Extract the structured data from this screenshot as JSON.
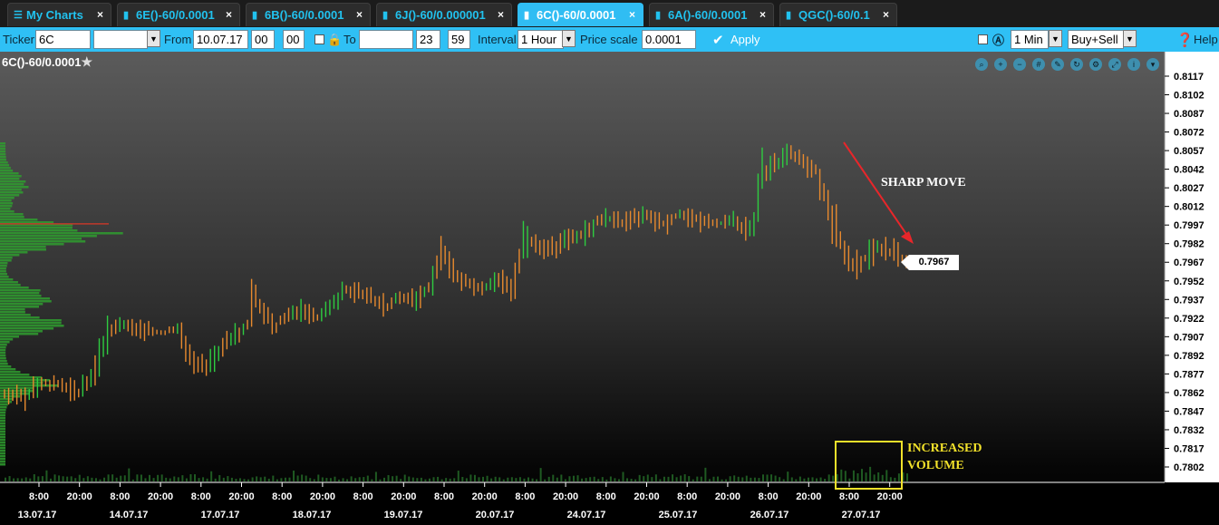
{
  "tabs": [
    {
      "label": "My Charts",
      "icon": "list-icon",
      "active": false
    },
    {
      "label": "6E()-60/0.0001",
      "icon": "chart-icon",
      "active": false
    },
    {
      "label": "6B()-60/0.0001",
      "icon": "chart-icon",
      "active": false
    },
    {
      "label": "6J()-60/0.000001",
      "icon": "chart-icon",
      "active": false
    },
    {
      "label": "6C()-60/0.0001",
      "icon": "chart-icon",
      "active": true
    },
    {
      "label": "6A()-60/0.0001",
      "icon": "chart-icon",
      "active": false
    },
    {
      "label": "QGC()-60/0.1",
      "icon": "chart-icon",
      "active": false
    }
  ],
  "toolbar": {
    "ticker_label": "Ticker",
    "ticker_value": "6C",
    "from_label": "From",
    "from_date": "10.07.17",
    "from_hour": "00",
    "from_minute": "00",
    "to_label": "To",
    "to_hour": "23",
    "to_minute": "59",
    "interval_label": "Interval",
    "interval_value": "1 Hour",
    "price_scale_label": "Price scale",
    "price_scale_value": "0.0001",
    "apply_label": "Apply",
    "timeframe_value": "1 Min",
    "side_value": "Buy+Sell",
    "help_label": "Help"
  },
  "chart_title": "6C()-60/0.0001",
  "last_price": "0.7967",
  "annotations": {
    "sharp_move": "SHARP MOVE",
    "increased_volume_1": "INCREASED",
    "increased_volume_2": "VOLUME"
  },
  "colors": {
    "tab_active": "#30bdf3",
    "toolbar": "#2fc0f5",
    "up_bar": "#2ecc40",
    "down_bar": "#e88a2e",
    "annotation_arrow": "#e8262a",
    "volume_box": "#f2e12a"
  },
  "chart_data": {
    "type": "bar",
    "y_ticks": [
      "0.8117",
      "0.8102",
      "0.8087",
      "0.8072",
      "0.8057",
      "0.8042",
      "0.8027",
      "0.8012",
      "0.7997",
      "0.7982",
      "0.7967",
      "0.7952",
      "0.7937",
      "0.7922",
      "0.7907",
      "0.7892",
      "0.7877",
      "0.7862",
      "0.7847",
      "0.7832",
      "0.7817",
      "0.7802"
    ],
    "ylim": [
      0.7795,
      0.8125
    ],
    "x_time_ticks": [
      "8:00",
      "20:00",
      "8:00",
      "20:00",
      "8:00",
      "20:00",
      "8:00",
      "20:00",
      "8:00",
      "20:00",
      "8:00",
      "20:00",
      "8:00",
      "20:00",
      "8:00",
      "20:00",
      "8:00",
      "20:00",
      "8:00",
      "20:00",
      "8:00",
      "20:00"
    ],
    "x_date_ticks": [
      "13.07.17",
      "14.07.17",
      "17.07.17",
      "18.07.17",
      "19.07.17",
      "20.07.17",
      "24.07.17",
      "25.07.17",
      "26.07.17",
      "27.07.17"
    ],
    "price_path": [
      [
        0,
        0.7862
      ],
      [
        3,
        0.7857
      ],
      [
        5,
        0.787
      ],
      [
        8,
        0.7868
      ],
      [
        11,
        0.7862
      ],
      [
        13,
        0.788
      ],
      [
        15,
        0.7912
      ],
      [
        17,
        0.7918
      ],
      [
        20,
        0.7912
      ],
      [
        23,
        0.791
      ],
      [
        25,
        0.7915
      ],
      [
        27,
        0.789
      ],
      [
        29,
        0.7882
      ],
      [
        31,
        0.7895
      ],
      [
        33,
        0.7907
      ],
      [
        35,
        0.7915
      ],
      [
        36,
        0.7942
      ],
      [
        37,
        0.793
      ],
      [
        39,
        0.7915
      ],
      [
        41,
        0.7925
      ],
      [
        43,
        0.793
      ],
      [
        45,
        0.7922
      ],
      [
        47,
        0.793
      ],
      [
        49,
        0.7945
      ],
      [
        51,
        0.7942
      ],
      [
        53,
        0.7938
      ],
      [
        55,
        0.793
      ],
      [
        57,
        0.794
      ],
      [
        59,
        0.7935
      ],
      [
        61,
        0.7945
      ],
      [
        62,
        0.7955
      ],
      [
        63,
        0.7975
      ],
      [
        65,
        0.7955
      ],
      [
        67,
        0.795
      ],
      [
        69,
        0.7945
      ],
      [
        71,
        0.7952
      ],
      [
        73,
        0.7945
      ],
      [
        74,
        0.7965
      ],
      [
        75,
        0.7985
      ],
      [
        77,
        0.798
      ],
      [
        79,
        0.7978
      ],
      [
        81,
        0.7985
      ],
      [
        83,
        0.7988
      ],
      [
        85,
        0.7998
      ],
      [
        87,
        0.8003
      ],
      [
        89,
        0.7998
      ],
      [
        91,
        0.8003
      ],
      [
        93,
        0.8005
      ],
      [
        95,
        0.7998
      ],
      [
        97,
        0.8005
      ],
      [
        99,
        0.8003
      ],
      [
        101,
        0.8
      ],
      [
        103,
        0.7998
      ],
      [
        105,
        0.8002
      ],
      [
        107,
        0.7992
      ],
      [
        108,
        0.7998
      ],
      [
        109,
        0.8035
      ],
      [
        111,
        0.8045
      ],
      [
        113,
        0.8055
      ],
      [
        115,
        0.8048
      ],
      [
        117,
        0.8042
      ],
      [
        118,
        0.8025
      ],
      [
        119,
        0.8008
      ],
      [
        120,
        0.7992
      ],
      [
        121,
        0.7978
      ],
      [
        122,
        0.7962
      ],
      [
        124,
        0.797
      ],
      [
        126,
        0.798
      ],
      [
        128,
        0.7975
      ],
      [
        130,
        0.7967
      ]
    ]
  }
}
